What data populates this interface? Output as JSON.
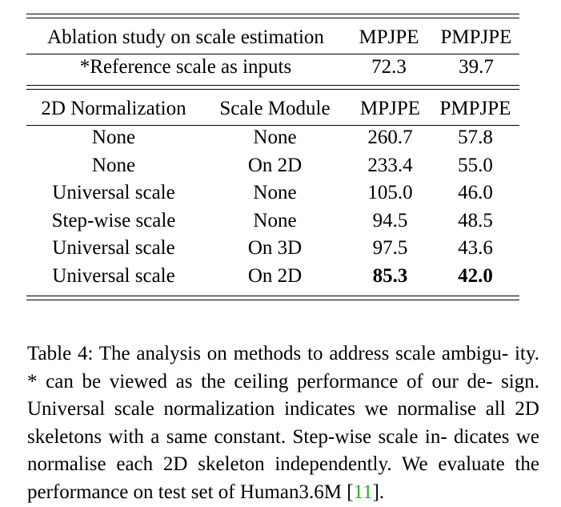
{
  "table": {
    "ablation_header": {
      "title": "Ablation study on scale estimation",
      "col_mpjpe": "MPJPE",
      "col_pmpjpe": "PMPJPE"
    },
    "reference_row": {
      "label": "*Reference scale as inputs",
      "mpjpe": "72.3",
      "pmpjpe": "39.7"
    },
    "main_header": {
      "col_normalization": "2D Normalization",
      "col_scale_module": "Scale Module",
      "col_mpjpe": "MPJPE",
      "col_pmpjpe": "PMPJPE"
    },
    "rows": [
      {
        "normalization": "None",
        "scale_module": "None",
        "mpjpe": "260.7",
        "pmpjpe": "57.8"
      },
      {
        "normalization": "None",
        "scale_module": "On 2D",
        "mpjpe": "233.4",
        "pmpjpe": "55.0"
      },
      {
        "normalization": "Universal scale",
        "scale_module": "None",
        "mpjpe": "105.0",
        "pmpjpe": "46.0"
      },
      {
        "normalization": "Step-wise scale",
        "scale_module": "None",
        "mpjpe": "94.5",
        "pmpjpe": "48.5"
      },
      {
        "normalization": "Universal scale",
        "scale_module": "On 3D",
        "mpjpe": "97.5",
        "pmpjpe": "43.6"
      },
      {
        "normalization": "Universal scale",
        "scale_module": "On 2D",
        "mpjpe": "85.3",
        "pmpjpe": "42.0"
      }
    ]
  },
  "caption": {
    "text_before_cite": "Table 4: The analysis on methods to address scale ambigu- ity. * can be viewed as the ceiling performance of our de- sign. Universal scale normalization indicates we normalise all 2D skeletons with a same constant. Step-wise scale in- dicates we normalise each 2D skeleton independently. We evaluate the performance on test set of Human3.6M [",
    "cite": "11",
    "text_after_cite": "].",
    "cite_color": "#22b022"
  }
}
